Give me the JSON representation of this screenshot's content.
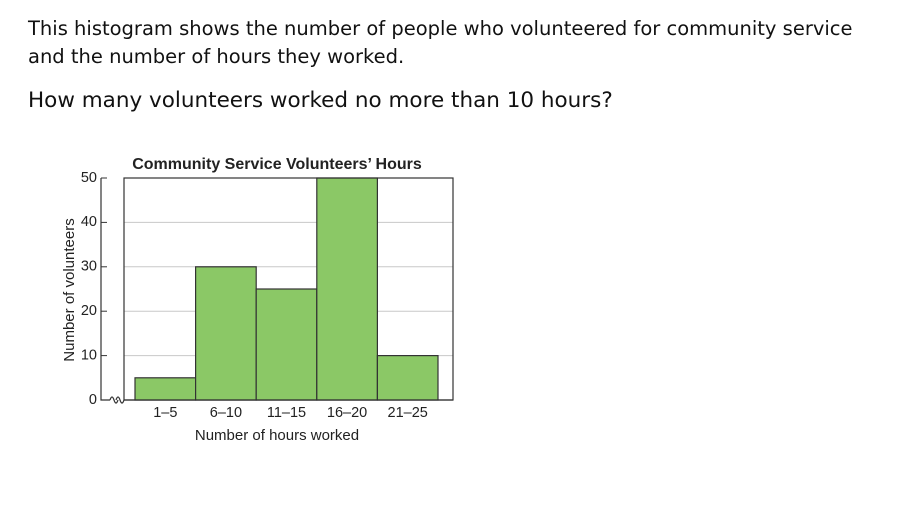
{
  "question": {
    "intro": "This histogram shows the number of people who volunteered for community service and the number of hours they worked.",
    "prompt": "How many volunteers worked no more than 10 hours?"
  },
  "chart_data": {
    "type": "bar",
    "title": "Community Service Volunteers’ Hours",
    "x_label": "Number of hours worked",
    "y_label": "Number of volunteers",
    "categories": [
      "1–5",
      "6–10",
      "11–15",
      "16–20",
      "21–25"
    ],
    "values": [
      5,
      30,
      25,
      50,
      10
    ],
    "color": "#8bc866",
    "ylim": [
      0,
      50
    ],
    "yticks": [
      0,
      10,
      20,
      30,
      40,
      50
    ],
    "grid": true
  }
}
